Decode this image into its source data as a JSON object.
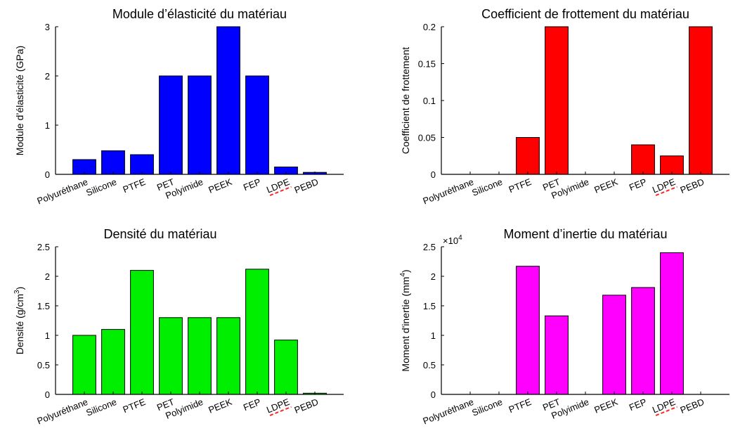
{
  "chart_data": [
    {
      "type": "bar",
      "title": "Module d’élasticité du matériau",
      "ylabel": "Module d’élasticité (GPa)",
      "xlabel": "",
      "categories": [
        "Polyuréthane",
        "Silicone",
        "PTFE",
        "PET",
        "Polyimide",
        "PEEK",
        "FEP",
        "LDPE",
        "PEBD"
      ],
      "values": [
        0.3,
        0.48,
        0.4,
        2.0,
        2.0,
        3.0,
        2.0,
        0.15,
        0.04
      ],
      "ylim": [
        0,
        3
      ],
      "yticks": [
        "0",
        "1",
        "2",
        "3"
      ],
      "ytick_values": [
        0,
        1,
        2,
        3
      ],
      "multiplier": "",
      "color": "#0000ff",
      "grid": false
    },
    {
      "type": "bar",
      "title": "Coefficient de frottement du matériau",
      "ylabel": "Coefficient de frottement",
      "xlabel": "",
      "categories": [
        "Polyuréthane",
        "Silicone",
        "PTFE",
        "PET",
        "Polyimide",
        "PEEK",
        "FEP",
        "LDPE",
        "PEBD"
      ],
      "values": [
        null,
        null,
        0.05,
        0.2,
        null,
        null,
        0.04,
        0.025,
        0.2
      ],
      "ylim": [
        0,
        0.2
      ],
      "yticks": [
        "0",
        "0.05",
        "0.1",
        "0.15",
        "0.2"
      ],
      "ytick_values": [
        0,
        0.05,
        0.1,
        0.15,
        0.2
      ],
      "multiplier": "",
      "color": "#ff0000",
      "grid": false
    },
    {
      "type": "bar",
      "title": "Densité du matériau",
      "ylabel": "Densité (g/cm",
      "ylabel_sup": "3",
      "ylabel_after": ")",
      "xlabel": "",
      "categories": [
        "Polyuréthane",
        "Silicone",
        "PTFE",
        "PET",
        "Polyimide",
        "PEEK",
        "FEP",
        "LDPE",
        "PEBD"
      ],
      "values": [
        1.0,
        1.1,
        2.1,
        1.3,
        1.3,
        1.3,
        2.12,
        0.92,
        0.02
      ],
      "ylim": [
        0,
        2.5
      ],
      "yticks": [
        "0",
        "0.5",
        "1",
        "1.5",
        "2",
        "2.5"
      ],
      "ytick_values": [
        0,
        0.5,
        1,
        1.5,
        2,
        2.5
      ],
      "multiplier": "",
      "color": "#00ee00",
      "grid": false
    },
    {
      "type": "bar",
      "title": "Moment d’inertie du matériau",
      "ylabel": "Moment d'inertie (mm",
      "ylabel_sup": "4",
      "ylabel_after": ")",
      "xlabel": "",
      "categories": [
        "Polyuréthane",
        "Silicone",
        "PTFE",
        "PET",
        "Polyimide",
        "PEEK",
        "FEP",
        "LDPE",
        "PEBD"
      ],
      "values": [
        null,
        null,
        2.17,
        1.33,
        null,
        1.68,
        1.81,
        2.4,
        null
      ],
      "ylim": [
        0,
        2.5
      ],
      "yticks": [
        "0",
        "0.5",
        "1",
        "1.5",
        "2",
        "2.5"
      ],
      "ytick_values": [
        0,
        0.5,
        1,
        1.5,
        2,
        2.5
      ],
      "multiplier": "×10",
      "multiplier_exp": "4",
      "color": "#ff00ff",
      "grid": false
    }
  ]
}
